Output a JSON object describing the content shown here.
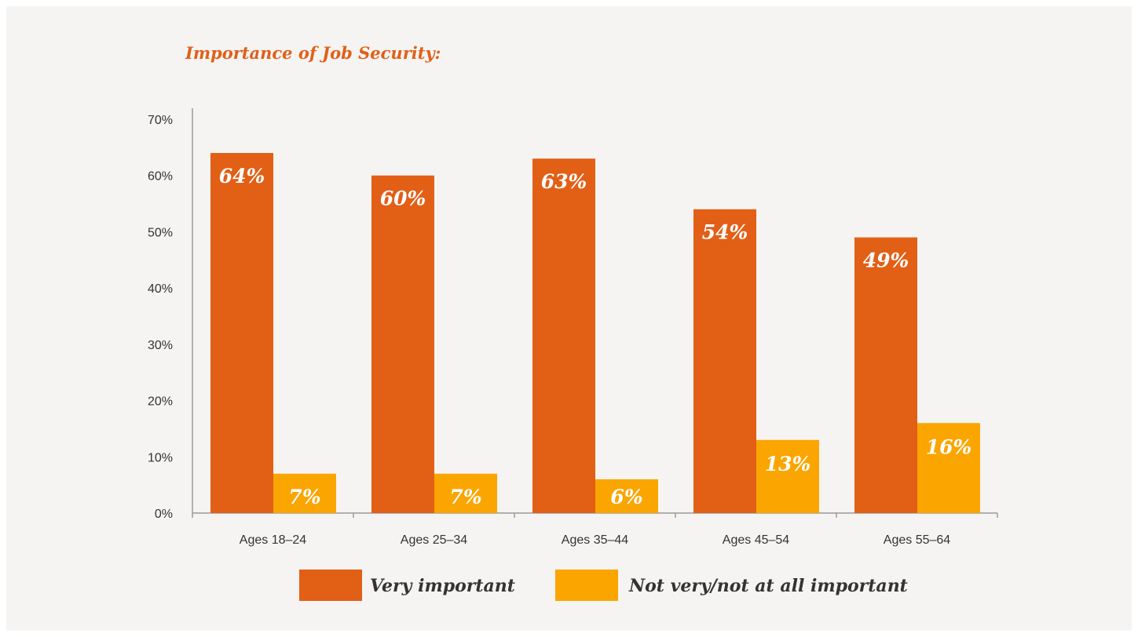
{
  "chart_data": {
    "type": "bar",
    "title": "Importance of Job Security:",
    "xlabel": "",
    "ylabel": "",
    "categories": [
      "Ages 18–24",
      "Ages 25–34",
      "Ages 35–44",
      "Ages 45–54",
      "Ages 55–64"
    ],
    "series": [
      {
        "name": "Very important",
        "values": [
          64,
          60,
          63,
          54,
          49
        ],
        "labels": [
          "64%",
          "60%",
          "63%",
          "54%",
          "49%"
        ],
        "color": "#e25f16"
      },
      {
        "name": "Not very/not at all important",
        "values": [
          7,
          7,
          6,
          13,
          16
        ],
        "labels": [
          "7%",
          "7%",
          "6%",
          "13%",
          "16%"
        ],
        "color": "#fba501"
      }
    ],
    "ylim": [
      0,
      70
    ],
    "yticks": [
      0,
      10,
      20,
      30,
      40,
      50,
      60,
      70
    ],
    "ytick_labels": [
      "0%",
      "10%",
      "20%",
      "30%",
      "40%",
      "50%",
      "60%",
      "70%"
    ],
    "grid": false,
    "legend_position": "bottom"
  }
}
